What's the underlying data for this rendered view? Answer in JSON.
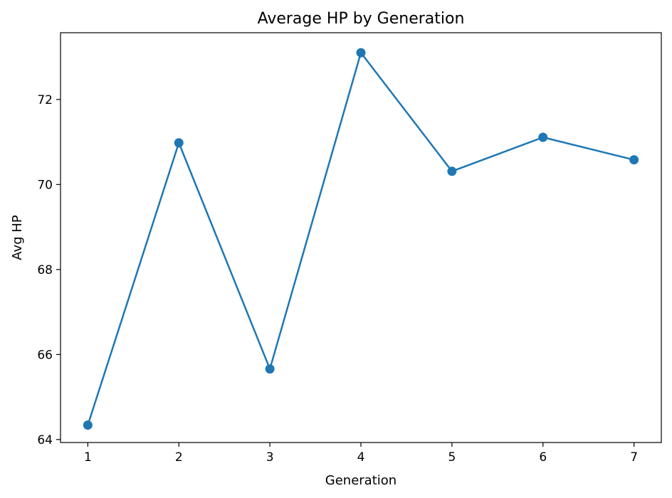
{
  "chart_data": {
    "type": "line",
    "title": "Average HP by Generation",
    "xlabel": "Generation",
    "ylabel": "Avg HP",
    "x": [
      1,
      2,
      3,
      4,
      5,
      6,
      7
    ],
    "series": [
      {
        "values": [
          64.34,
          70.98,
          65.66,
          73.1,
          70.31,
          71.11,
          70.58
        ],
        "color": "#1f77b4",
        "marker": "circle"
      }
    ],
    "xlim": [
      0.7,
      7.3
    ],
    "ylim": [
      63.93,
      73.57
    ],
    "xticks": [
      1,
      2,
      3,
      4,
      5,
      6,
      7
    ],
    "yticks": [
      64,
      66,
      68,
      70,
      72
    ],
    "grid": false,
    "legend": "none"
  }
}
